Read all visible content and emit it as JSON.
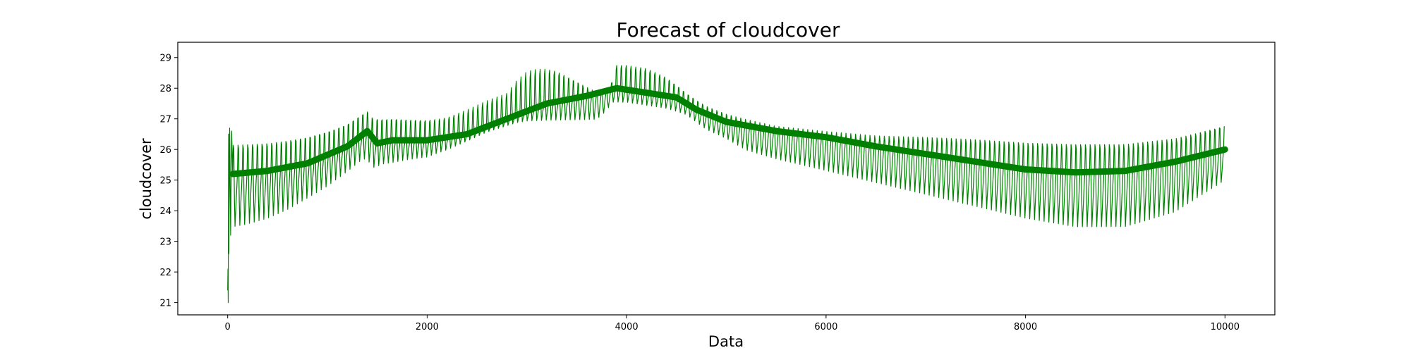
{
  "chart_data": {
    "type": "line",
    "title": "Forecast of cloudcover",
    "xlabel": "Data",
    "ylabel": "cloudcover",
    "xlim": [
      -500,
      10500
    ],
    "ylim": [
      20.6,
      29.5
    ],
    "xticks": [
      0,
      2000,
      4000,
      6000,
      8000,
      10000
    ],
    "xtick_labels": [
      "0",
      "2000",
      "4000",
      "6000",
      "8000",
      "10000"
    ],
    "yticks": [
      21,
      22,
      23,
      24,
      25,
      26,
      27,
      28,
      29
    ],
    "ytick_labels": [
      "21",
      "22",
      "23",
      "24",
      "25",
      "26",
      "27",
      "28",
      "29"
    ],
    "grid": false,
    "legend": "none",
    "color": "#008000",
    "series": [
      {
        "oscillation_period_x": 48,
        "initial_values": {
          "x": [
            0,
            3,
            6,
            9,
            12,
            20,
            30,
            40
          ],
          "y": [
            21.4,
            22.1,
            21.0,
            26.5,
            22.6,
            26.7,
            23.2,
            26.6
          ]
        },
        "upper_envelope": {
          "x": [
            50,
            200,
            400,
            600,
            800,
            1000,
            1200,
            1350,
            1400,
            1450,
            1550,
            1650,
            1800,
            2000,
            2200,
            2400,
            2600,
            2800,
            2900,
            3000,
            3100,
            3200,
            3300,
            3400,
            3500,
            3600,
            3700,
            3800,
            3850,
            3900,
            4000,
            4200,
            4400,
            4600,
            4800,
            5000,
            5200,
            5500,
            6000,
            6500,
            7000,
            7500,
            8000,
            8500,
            9000,
            9500,
            10000
          ],
          "y": [
            26.7,
            26.7,
            26.72,
            26.78,
            26.88,
            27.0,
            27.2,
            27.5,
            27.6,
            27.4,
            27.35,
            27.35,
            27.3,
            27.25,
            27.3,
            27.55,
            27.85,
            28.1,
            28.6,
            28.95,
            29.05,
            29.05,
            28.95,
            28.75,
            28.5,
            28.2,
            27.9,
            27.9,
            28.3,
            29.05,
            29.05,
            28.95,
            28.6,
            28.0,
            27.55,
            27.3,
            27.1,
            26.85,
            26.7,
            26.65,
            26.72,
            26.75,
            26.72,
            26.7,
            26.68,
            26.8,
            27.2
          ]
        },
        "lower_envelope": {
          "x": [
            50,
            200,
            400,
            600,
            800,
            1000,
            1200,
            1350,
            1400,
            1450,
            1550,
            1650,
            1800,
            2000,
            2200,
            2400,
            2600,
            2800,
            2900,
            3000,
            3100,
            3200,
            3300,
            3400,
            3500,
            3600,
            3700,
            3800,
            3850,
            3900,
            4000,
            4200,
            4400,
            4600,
            4800,
            5000,
            5200,
            5500,
            6000,
            6500,
            7000,
            7500,
            8000,
            8500,
            9000,
            9500,
            10000
          ],
          "y": [
            23.3,
            23.4,
            23.6,
            23.9,
            24.3,
            24.7,
            25.2,
            25.6,
            25.6,
            25.3,
            25.45,
            25.5,
            25.6,
            25.7,
            25.95,
            26.25,
            26.55,
            26.75,
            26.85,
            26.9,
            26.9,
            26.9,
            26.9,
            26.9,
            26.9,
            26.9,
            26.9,
            27.2,
            27.5,
            27.5,
            27.5,
            27.4,
            27.3,
            27.1,
            26.6,
            26.3,
            25.9,
            25.6,
            25.2,
            24.8,
            24.4,
            24.0,
            23.6,
            23.3,
            23.3,
            23.8,
            24.9
          ]
        },
        "trend": {
          "x": [
            50,
            400,
            800,
            1200,
            1400,
            1500,
            1650,
            2000,
            2400,
            2800,
            3200,
            3600,
            3900,
            4200,
            4500,
            4700,
            5000,
            5500,
            6000,
            6500,
            7000,
            7500,
            8000,
            8500,
            9000,
            9500,
            10000
          ],
          "y": [
            25.2,
            25.3,
            25.55,
            26.1,
            26.6,
            26.2,
            26.3,
            26.3,
            26.5,
            27.0,
            27.5,
            27.75,
            28.0,
            27.85,
            27.7,
            27.3,
            26.9,
            26.6,
            26.4,
            26.1,
            25.85,
            25.6,
            25.35,
            25.25,
            25.3,
            25.6,
            26.0
          ]
        }
      }
    ]
  }
}
